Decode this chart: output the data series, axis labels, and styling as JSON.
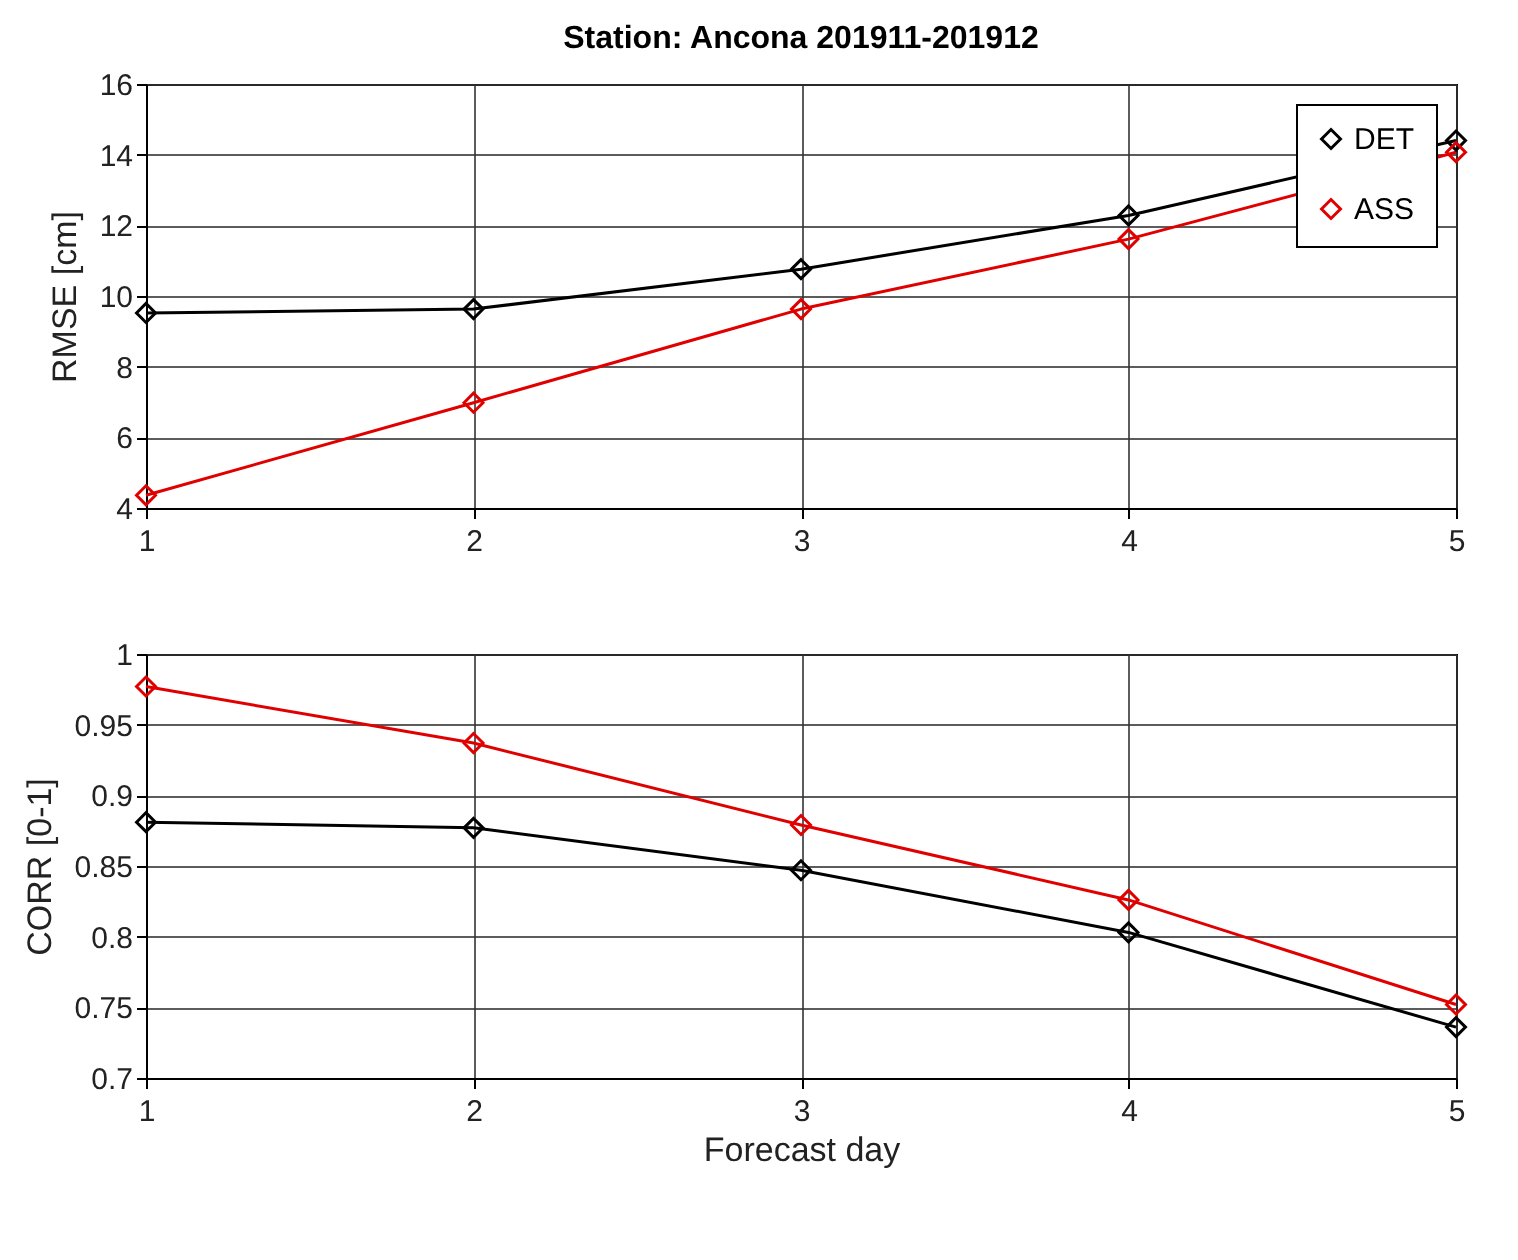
{
  "chart_data": [
    {
      "type": "line",
      "title": "Station: Ancona 201911-201912",
      "ylabel": "RMSE [cm]",
      "x": [
        1,
        2,
        3,
        4,
        5
      ],
      "xlim": [
        1,
        5
      ],
      "xticks": [
        1,
        2,
        3,
        4,
        5
      ],
      "ylim": [
        4,
        16
      ],
      "yticks": [
        4,
        6,
        8,
        10,
        12,
        14,
        16
      ],
      "grid": true,
      "legend": "top right",
      "marker": "diamond",
      "line_style": "solid",
      "series": [
        {
          "name": "DET",
          "color": "#000000",
          "values": [
            9.52,
            9.63,
            10.76,
            12.28,
            14.4
          ]
        },
        {
          "name": "ASS",
          "color": "#e00000",
          "values": [
            4.36,
            6.98,
            9.63,
            11.61,
            14.07
          ]
        }
      ]
    },
    {
      "type": "line",
      "xlabel": "Forecast day",
      "ylabel": "CORR [0-1]",
      "x": [
        1,
        2,
        3,
        4,
        5
      ],
      "xlim": [
        1,
        5
      ],
      "xticks": [
        1,
        2,
        3,
        4,
        5
      ],
      "ylim": [
        0.7,
        1
      ],
      "yticks": [
        0.7,
        0.75,
        0.8,
        0.85,
        0.9,
        0.95,
        1
      ],
      "grid": true,
      "legend": "top right",
      "marker": "diamond",
      "line_style": "solid",
      "series": [
        {
          "name": "DET",
          "color": "#000000",
          "values": [
            0.881,
            0.877,
            0.847,
            0.803,
            0.736
          ]
        },
        {
          "name": "ASS",
          "color": "#e00000",
          "values": [
            0.977,
            0.937,
            0.879,
            0.826,
            0.752
          ]
        }
      ]
    }
  ]
}
